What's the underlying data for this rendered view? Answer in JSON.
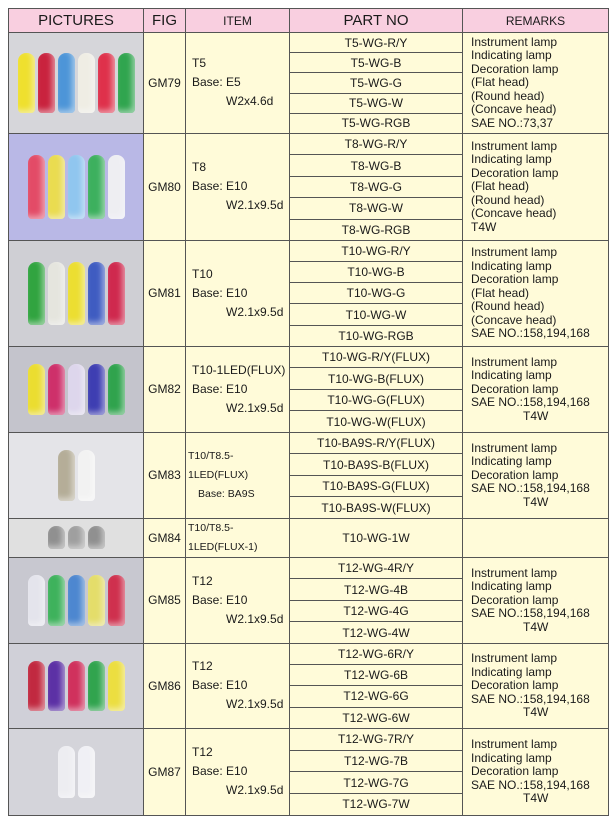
{
  "header": {
    "pictures": "PICTURES",
    "fig": "FIG",
    "item": "ITEM",
    "part_no": "PART NO",
    "remarks": "REMARKS"
  },
  "rows": [
    {
      "fig": "GM79",
      "item": [
        "T5",
        "Base: E5",
        "W2x4.6d"
      ],
      "parts": [
        "T5-WG-R/Y",
        "T5-WG-B",
        "T5-WG-G",
        "T5-WG-W",
        "T5-WG-RGB"
      ],
      "remarks": [
        "Instrument lamp",
        "Indicating lamp",
        "Decoration lamp",
        "(Flat head)",
        "(Round head)",
        "(Concave head)",
        "SAE NO.:73,37"
      ],
      "picture_bg": "#d6d6da",
      "bulb_colors": [
        "#f2e21c",
        "#c8102e",
        "#3f8fd8",
        "#f2f0e6",
        "#e0203c",
        "#1fa040"
      ]
    },
    {
      "fig": "GM80",
      "item": [
        "T8",
        "Base: E10",
        "W2.1x9.5d"
      ],
      "parts": [
        "T8-WG-R/Y",
        "T8-WG-B",
        "T8-WG-G",
        "T8-WG-W",
        "T8-WG-RGB"
      ],
      "remarks": [
        "Instrument lamp",
        "Indicating lamp",
        "Decoration lamp",
        "(Flat head)",
        "(Round head)",
        "(Concave head)",
        "T4W"
      ],
      "picture_bg": "#b9b8e6",
      "bulb_colors": [
        "#e8405a",
        "#f0e040",
        "#8cc8f0",
        "#30b050",
        "#f4f4f4"
      ]
    },
    {
      "fig": "GM81",
      "item": [
        "T10",
        "Base: E10",
        "W2.1x9.5d"
      ],
      "parts": [
        "T10-WG-R/Y",
        "T10-WG-B",
        "T10-WG-G",
        "T10-WG-W",
        "T10-WG-RGB"
      ],
      "remarks": [
        "Instrument lamp",
        "Indicating lamp",
        "Decoration lamp",
        "(Flat head)",
        "(Round head)",
        "(Concave head)",
        "SAE NO.:158,194,168"
      ],
      "picture_bg": "#cfcfd4",
      "bulb_colors": [
        "#20a030",
        "#e8e8e0",
        "#f0e020",
        "#3050c0",
        "#d01840"
      ]
    },
    {
      "fig": "GM82",
      "item": [
        "T10-1LED(FLUX)",
        "Base: E10",
        "W2.1x9.5d"
      ],
      "parts": [
        "T10-WG-R/Y(FLUX)",
        "T10-WG-B(FLUX)",
        "T10-WG-G(FLUX)",
        "T10-WG-W(FLUX)"
      ],
      "remarks": [
        "Instrument lamp",
        "Indicating lamp",
        "Decoration lamp",
        "SAE NO.:158,194,168",
        "T4W"
      ],
      "picture_bg": "#c4c4cc",
      "bulb_colors": [
        "#f0e020",
        "#d02060",
        "#e0d8f0",
        "#3030b0",
        "#20a040"
      ]
    },
    {
      "fig": "GM83",
      "item": [
        "T10/T8.5-1LED(FLUX)",
        "Base: BA9S"
      ],
      "parts": [
        "T10-BA9S-R/Y(FLUX)",
        "T10-BA9S-B(FLUX)",
        "T10-BA9S-G(FLUX)",
        "T10-BA9S-W(FLUX)"
      ],
      "remarks": [
        "Instrument lamp",
        "Indicating lamp",
        "Decoration lamp",
        "SAE NO.:158,194,168",
        "T4W"
      ],
      "picture_bg": "#e4e4e8",
      "bulb_colors": [
        "#b0a890",
        "#f4f4f4"
      ]
    },
    {
      "fig": "GM84",
      "item": [
        "T10/T8.5-1LED(FLUX-1)"
      ],
      "parts": [
        "T10-WG-1W"
      ],
      "remarks": [],
      "picture_bg": "#e0e0e0",
      "bulb_colors": [
        "#888888",
        "#999999",
        "#888888"
      ]
    },
    {
      "fig": "GM85",
      "item": [
        "T12",
        "Base: E10",
        "W2.1x9.5d"
      ],
      "parts": [
        "T12-WG-4R/Y",
        "T12-WG-4B",
        "T12-WG-4G",
        "T12-WG-4W"
      ],
      "remarks": [
        "Instrument lamp",
        "Indicating lamp",
        "Decoration lamp",
        "SAE NO.:158,194,168",
        "T4W"
      ],
      "picture_bg": "#c8c8d0",
      "bulb_colors": [
        "#e8e8f0",
        "#30b050",
        "#4080d0",
        "#e8e060",
        "#d02040"
      ]
    },
    {
      "fig": "GM86",
      "item": [
        "T12",
        "Base: E10",
        "W2.1x9.5d"
      ],
      "parts": [
        "T12-WG-6R/Y",
        "T12-WG-6B",
        "T12-WG-6G",
        "T12-WG-6W"
      ],
      "remarks": [
        "Instrument lamp",
        "Indicating lamp",
        "Decoration lamp",
        "SAE NO.:158,194,168",
        "T4W"
      ],
      "picture_bg": "#d0d0d8",
      "bulb_colors": [
        "#c01830",
        "#5020a0",
        "#d02050",
        "#20a040",
        "#f0e030"
      ]
    },
    {
      "fig": "GM87",
      "item": [
        "T12",
        "Base: E10",
        "W2.1x9.5d"
      ],
      "parts": [
        "T12-WG-7R/Y",
        "T12-WG-7B",
        "T12-WG-7G",
        "T12-WG-7W"
      ],
      "remarks": [
        "Instrument lamp",
        "Indicating lamp",
        "Decoration lamp",
        "SAE NO.:158,194,168",
        "T4W"
      ],
      "picture_bg": "#d4d4da",
      "bulb_colors": [
        "#f0f0f4",
        "#f4f4f8"
      ]
    }
  ]
}
